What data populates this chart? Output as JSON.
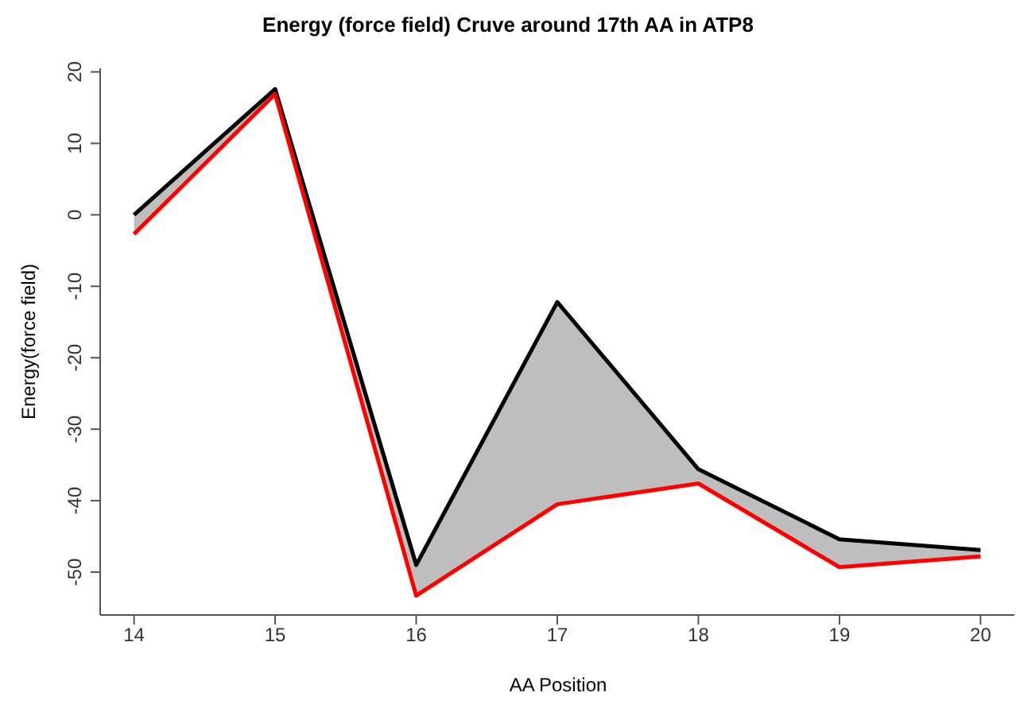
{
  "chart_data": {
    "type": "line",
    "title": "Energy (force field) Cruve around 17th AA in ATP8",
    "xlabel": "AA Position",
    "ylabel": "Energy(force field)",
    "x": [
      14,
      15,
      16,
      17,
      18,
      19,
      20
    ],
    "series": [
      {
        "color": "#000000",
        "values": [
          0,
          17.6,
          -49,
          -12.2,
          -35.6,
          -45.4,
          -46.9
        ],
        "lower": [
          -2.7,
          16.9,
          -53.3,
          -40.5,
          -37.6,
          -49.3,
          -47.8
        ],
        "upper": [
          0,
          17.6,
          -49,
          -12.2,
          -35.6,
          -45.4,
          -46.9
        ]
      },
      {
        "color": "#ff0000",
        "values": [
          -2.7,
          16.9,
          -53.3,
          -40.5,
          -37.6,
          -49.3,
          -47.8
        ]
      }
    ],
    "xlim": [
      13.76,
      20.24
    ],
    "xticks": [
      14,
      15,
      16,
      17,
      18,
      19,
      20
    ],
    "ylim": [
      -56,
      20.5
    ],
    "yticks": [
      -50,
      -40,
      -30,
      -20,
      -10,
      0,
      10,
      20
    ],
    "grid": false,
    "legend": false,
    "marker": "none",
    "line_style": "solid"
  }
}
